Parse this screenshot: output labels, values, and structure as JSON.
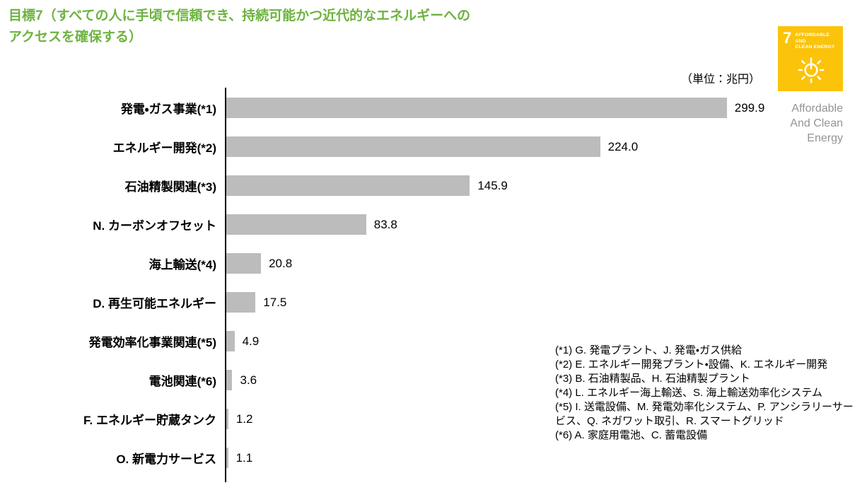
{
  "colors": {
    "title_green": "#6db33f",
    "bar_gray": "#bcbcbc",
    "sdg_yellow": "#fcc30b",
    "caption_gray": "#949494",
    "axis_black": "#000000"
  },
  "title": {
    "line1": "目標7（すべての人に手頃で信頼でき、持続可能かつ近代的なエネルギーへの",
    "line2": "アクセスを確保する）"
  },
  "unit_label": "（単位：兆円）",
  "sdg_badge": {
    "number": "7",
    "name_line1": "AFFORDABLE AND",
    "name_line2": "CLEAN ENERGY",
    "caption_line1": "Affordable",
    "caption_line2": "And Clean",
    "caption_line3": "Energy"
  },
  "chart_data": {
    "type": "bar",
    "orientation": "horizontal",
    "title": "目標7（すべての人に手頃で信頼でき、持続可能かつ近代的なエネルギーへのアクセスを確保する）",
    "unit": "兆円",
    "xlim": [
      0,
      300
    ],
    "grid": false,
    "legend": false,
    "categories": [
      "発電・ガス事業(*1)",
      "エネルギー開発(*2)",
      "石油精製関連(*3)",
      "N. カーボンオフセット",
      "海上輸送(*4)",
      "D. 再生可能エネルギー",
      "発電効率化事業関連(*5)",
      "電池関連(*6)",
      "F. エネルギー貯蔵タンク",
      "O. 新電力サービス"
    ],
    "values": [
      299.9,
      224.0,
      145.9,
      83.8,
      20.8,
      17.5,
      4.9,
      3.6,
      1.2,
      1.1
    ],
    "value_labels": [
      "299.9",
      "224.0",
      "145.9",
      "83.8",
      "20.8",
      "17.5",
      "4.9",
      "3.6",
      "1.2",
      "1.1"
    ]
  },
  "footnotes": [
    "(*1) G. 発電プラント、J. 発電・ガス供給",
    "(*2) E. エネルギー開発プラント・設備、K. エネルギー開発",
    "(*3) B. 石油精製品、H. 石油精製プラント",
    "(*4) L. エネルギー海上輸送、S. 海上輸送効率化システム",
    "(*5) I. 送電設備、M. 発電効率化システム、P. アンシラリーサービス、Q. ネガワット取引、R. スマートグリッド",
    "(*6) A. 家庭用電池、C. 蓄電設備"
  ]
}
